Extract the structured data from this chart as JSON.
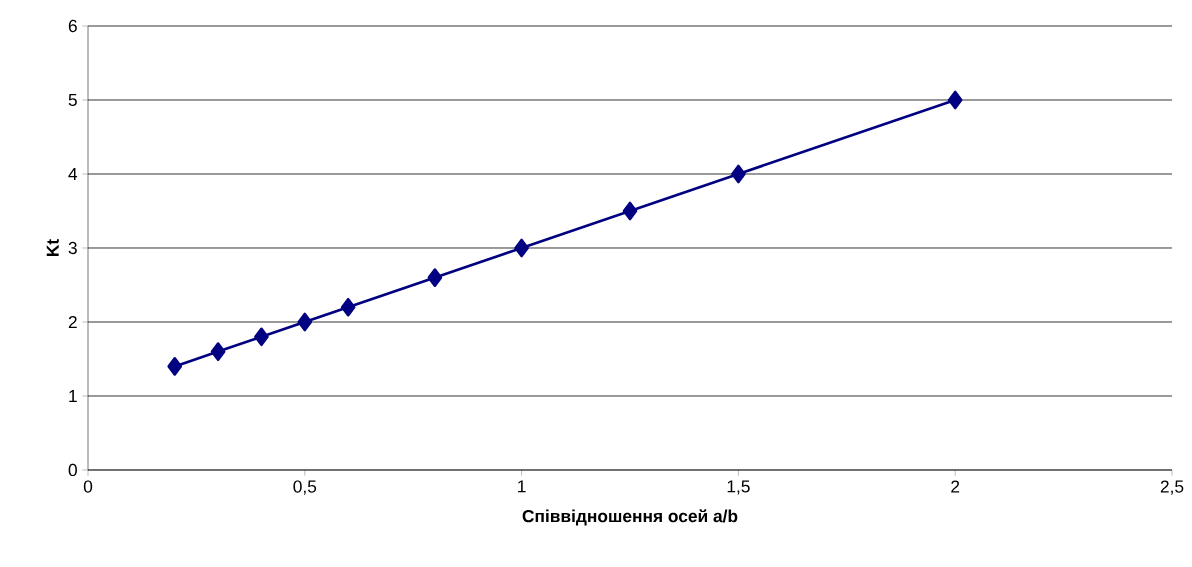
{
  "chart_data": {
    "type": "line",
    "xlabel": "Співвідношення осей a/b",
    "ylabel": "Kt",
    "x": [
      0.2,
      0.3,
      0.4,
      0.5,
      0.6,
      0.8,
      1,
      1.25,
      1.5,
      2
    ],
    "series": [
      {
        "color": "#000080",
        "values": [
          1.4,
          1.6,
          1.8,
          2.0,
          2.2,
          2.6,
          3.0,
          3.5,
          4.0,
          5.0
        ]
      }
    ],
    "xlim": [
      0,
      2.5
    ],
    "ylim": [
      0,
      6
    ],
    "xticks": [
      0,
      {
        "value": 0.5,
        "label": "0,5"
      },
      1,
      {
        "value": 1.5,
        "label": "1,5"
      },
      2,
      {
        "value": 2.5,
        "label": "2,5"
      }
    ],
    "yticks": [
      0,
      1,
      2,
      3,
      4,
      5,
      6
    ],
    "grid": "y",
    "marker": "diamond",
    "line_style": "solid"
  }
}
